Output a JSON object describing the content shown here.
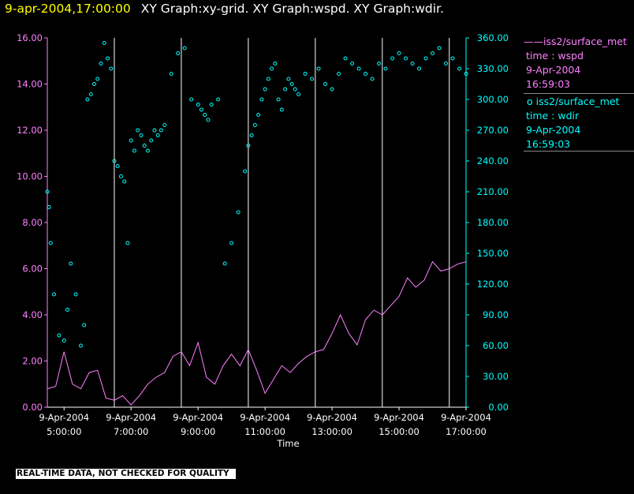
{
  "header": {
    "datetime": "9-apr-2004,17:00:00",
    "graphs": "XY Graph:xy-grid.  XY Graph:wspd.  XY Graph:wdir."
  },
  "legend": {
    "wspd": {
      "label": "iss2/surface_met",
      "field": "time : wspd",
      "date": "9-Apr-2004",
      "time": "16:59:03"
    },
    "wdir": {
      "label": "iss2/surface_met",
      "field": "time : wdir",
      "date": "9-Apr-2004",
      "time": "16:59:03"
    }
  },
  "disclaimer": "REAL-TIME DATA, NOT CHECKED FOR QUALITY",
  "colors": {
    "background": "#000000",
    "wspd": "#ff80ff",
    "wdir": "#00ffff",
    "grid": "#ffffff",
    "header_time": "#ffff00"
  },
  "chart_data": {
    "type": "line",
    "xlabel": "Time",
    "x_unit": "hour",
    "xlim": [
      4.5,
      17.0
    ],
    "x_ticks": [
      {
        "value": 5,
        "date": "9-Apr-2004",
        "time": "5:00:00"
      },
      {
        "value": 7,
        "date": "9-Apr-2004",
        "time": "7:00:00"
      },
      {
        "value": 9,
        "date": "9-Apr-2004",
        "time": "9:00:00"
      },
      {
        "value": 11,
        "date": "9-Apr-2004",
        "time": "11:00:00"
      },
      {
        "value": 13,
        "date": "9-Apr-2004",
        "time": "13:00:00"
      },
      {
        "value": 15,
        "date": "9-Apr-2004",
        "time": "15:00:00"
      },
      {
        "value": 17,
        "date": "9-Apr-2004",
        "time": "17:00:00"
      }
    ],
    "vertical_grid_hours": [
      6.5,
      8.5,
      10.5,
      12.5,
      14.5,
      16.5
    ],
    "left_axis": {
      "ylim": [
        0,
        16
      ],
      "ticks": [
        "0.00",
        "2.00",
        "4.00",
        "6.00",
        "8.00",
        "10.00",
        "12.00",
        "14.00",
        "16.00"
      ]
    },
    "right_axis": {
      "ylim": [
        0,
        360
      ],
      "ticks": [
        "0.00",
        "30.00",
        "60.00",
        "90.00",
        "120.00",
        "150.00",
        "180.00",
        "210.00",
        "240.00",
        "270.00",
        "300.00",
        "330.00",
        "360.00"
      ]
    },
    "series": [
      {
        "name": "wspd",
        "style": "line",
        "axis": "left",
        "x": [
          4.5,
          4.75,
          5.0,
          5.25,
          5.5,
          5.75,
          6.0,
          6.25,
          6.5,
          6.75,
          7.0,
          7.25,
          7.5,
          7.75,
          8.0,
          8.25,
          8.5,
          8.75,
          9.0,
          9.25,
          9.5,
          9.75,
          10.0,
          10.25,
          10.5,
          10.75,
          11.0,
          11.25,
          11.5,
          11.75,
          12.0,
          12.25,
          12.5,
          12.75,
          13.0,
          13.25,
          13.5,
          13.75,
          14.0,
          14.25,
          14.5,
          14.75,
          15.0,
          15.25,
          15.5,
          15.75,
          16.0,
          16.25,
          16.5,
          16.75,
          17.0
        ],
        "values": [
          0.8,
          0.9,
          2.4,
          1.0,
          0.8,
          1.5,
          1.6,
          0.4,
          0.3,
          0.5,
          0.1,
          0.5,
          1.0,
          1.3,
          1.5,
          2.2,
          2.4,
          1.8,
          2.8,
          1.3,
          1.0,
          1.8,
          2.3,
          1.8,
          2.5,
          1.6,
          0.6,
          1.2,
          1.8,
          1.5,
          1.9,
          2.2,
          2.4,
          2.5,
          3.2,
          4.0,
          3.2,
          2.7,
          3.8,
          4.2,
          4.0,
          4.4,
          4.8,
          5.6,
          5.2,
          5.5,
          6.3,
          5.9,
          6.0,
          6.2,
          6.3
        ]
      },
      {
        "name": "wdir",
        "style": "scatter",
        "axis": "right",
        "x": [
          4.5,
          4.55,
          4.6,
          4.7,
          4.85,
          5.0,
          5.1,
          5.2,
          5.35,
          5.5,
          5.6,
          5.7,
          5.8,
          5.9,
          6.0,
          6.1,
          6.2,
          6.3,
          6.4,
          6.5,
          6.6,
          6.7,
          6.8,
          6.9,
          7.0,
          7.1,
          7.2,
          7.3,
          7.4,
          7.5,
          7.6,
          7.7,
          7.8,
          7.9,
          8.0,
          8.2,
          8.4,
          8.6,
          8.8,
          9.0,
          9.1,
          9.2,
          9.3,
          9.4,
          9.6,
          9.8,
          10.0,
          10.2,
          10.4,
          10.5,
          10.6,
          10.7,
          10.8,
          10.9,
          11.0,
          11.1,
          11.2,
          11.3,
          11.4,
          11.5,
          11.6,
          11.7,
          11.8,
          11.9,
          12.0,
          12.2,
          12.4,
          12.6,
          12.8,
          13.0,
          13.2,
          13.4,
          13.6,
          13.8,
          14.0,
          14.2,
          14.4,
          14.6,
          14.8,
          15.0,
          15.2,
          15.4,
          15.6,
          15.8,
          16.0,
          16.2,
          16.4,
          16.6,
          16.8,
          17.0
        ],
        "values": [
          210,
          195,
          160,
          110,
          70,
          65,
          95,
          140,
          110,
          60,
          80,
          300,
          305,
          315,
          320,
          335,
          355,
          340,
          330,
          240,
          235,
          225,
          220,
          160,
          260,
          250,
          270,
          265,
          255,
          250,
          260,
          270,
          265,
          270,
          275,
          325,
          345,
          350,
          300,
          295,
          290,
          285,
          280,
          295,
          300,
          140,
          160,
          190,
          230,
          255,
          265,
          275,
          285,
          300,
          310,
          320,
          330,
          335,
          300,
          290,
          310,
          320,
          315,
          310,
          305,
          325,
          320,
          330,
          315,
          310,
          325,
          340,
          335,
          330,
          325,
          320,
          335,
          330,
          340,
          345,
          340,
          335,
          330,
          340,
          345,
          350,
          335,
          340,
          330,
          325
        ]
      }
    ]
  }
}
